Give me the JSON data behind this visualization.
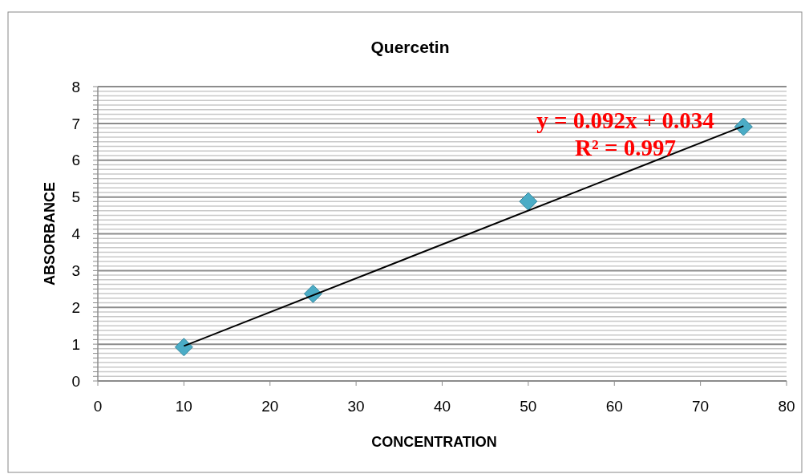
{
  "chart_data": {
    "type": "scatter",
    "title": "Quercetin",
    "xlabel": "CONCENTRATION",
    "ylabel": "ABSORBANCE",
    "marker": "diamond",
    "grid": "y",
    "xlim": [
      0,
      80
    ],
    "xticks": [
      0,
      10,
      20,
      30,
      40,
      50,
      60,
      70,
      80
    ],
    "ylim": [
      0,
      8
    ],
    "yticks": [
      0,
      {
        "value": 0.125,
        "label": null
      },
      {
        "value": 0.25,
        "label": null
      },
      {
        "value": 0.375,
        "label": null
      },
      {
        "value": 0.5,
        "label": null
      },
      {
        "value": 0.625,
        "label": null
      },
      {
        "value": 0.75,
        "label": null
      },
      {
        "value": 0.875,
        "label": null
      },
      1,
      {
        "value": 1.125,
        "label": null
      },
      {
        "value": 1.25,
        "label": null
      },
      {
        "value": 1.375,
        "label": null
      },
      {
        "value": 1.5,
        "label": null
      },
      {
        "value": 1.625,
        "label": null
      },
      {
        "value": 1.75,
        "label": null
      },
      {
        "value": 1.875,
        "label": null
      },
      2,
      {
        "value": 2.125,
        "label": null
      },
      {
        "value": 2.25,
        "label": null
      },
      {
        "value": 2.375,
        "label": null
      },
      {
        "value": 2.5,
        "label": null
      },
      {
        "value": 2.625,
        "label": null
      },
      {
        "value": 2.75,
        "label": null
      },
      {
        "value": 2.875,
        "label": null
      },
      3,
      {
        "value": 3.125,
        "label": null
      },
      {
        "value": 3.25,
        "label": null
      },
      {
        "value": 3.375,
        "label": null
      },
      {
        "value": 3.5,
        "label": null
      },
      {
        "value": 3.625,
        "label": null
      },
      {
        "value": 3.75,
        "label": null
      },
      {
        "value": 3.875,
        "label": null
      },
      4,
      {
        "value": 4.125,
        "label": null
      },
      {
        "value": 4.25,
        "label": null
      },
      {
        "value": 4.375,
        "label": null
      },
      {
        "value": 4.5,
        "label": null
      },
      {
        "value": 4.625,
        "label": null
      },
      {
        "value": 4.75,
        "label": null
      },
      {
        "value": 4.875,
        "label": null
      },
      5,
      {
        "value": 5.125,
        "label": null
      },
      {
        "value": 5.25,
        "label": null
      },
      {
        "value": 5.375,
        "label": null
      },
      {
        "value": 5.5,
        "label": null
      },
      {
        "value": 5.625,
        "label": null
      },
      {
        "value": 5.75,
        "label": null
      },
      {
        "value": 5.875,
        "label": null
      },
      6,
      {
        "value": 6.125,
        "label": null
      },
      {
        "value": 6.25,
        "label": null
      },
      {
        "value": 6.375,
        "label": null
      },
      {
        "value": 6.5,
        "label": null
      },
      {
        "value": 6.625,
        "label": null
      },
      {
        "value": 6.75,
        "label": null
      },
      {
        "value": 6.875,
        "label": null
      },
      7,
      {
        "value": 7.125,
        "label": null
      },
      {
        "value": 7.25,
        "label": null
      },
      {
        "value": 7.375,
        "label": null
      },
      {
        "value": 7.5,
        "label": null
      },
      {
        "value": 7.625,
        "label": null
      },
      {
        "value": 7.75,
        "label": null
      },
      {
        "value": 7.875,
        "label": null
      },
      8
    ],
    "series": [
      {
        "color": "#4bacc6",
        "x": [
          10,
          25,
          50,
          75
        ],
        "values": [
          0.92,
          2.37,
          4.88,
          6.91
        ]
      },
      {
        "type": "line",
        "color": "#000000",
        "marker": "none",
        "x": [
          10,
          75
        ],
        "values": [
          0.95,
          6.93
        ]
      }
    ],
    "annotations": [
      "y = 0.092x + 0.034",
      "R² = 0.997"
    ]
  }
}
